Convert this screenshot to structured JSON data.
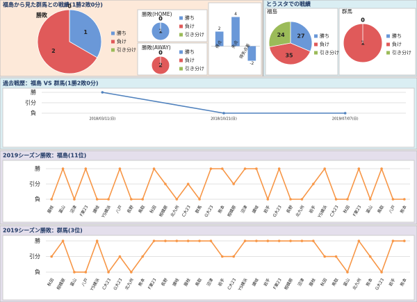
{
  "stadium_header": "とうスタでの戦績",
  "chart_data": [
    {
      "type": "pie",
      "title": "福島から見た群馬との戦績(1勝2敗0分)",
      "label": "勝敗",
      "categories": [
        "勝ち",
        "負け",
        "引き分け"
      ],
      "values": [
        1,
        2,
        0
      ],
      "colors": [
        "#6a98d8",
        "#e05a5a",
        "#9bbb59"
      ]
    },
    {
      "type": "pie",
      "title": "勝敗(HOME)",
      "categories": [
        "勝ち",
        "負け",
        "引き分け"
      ],
      "values": [
        1,
        0,
        0
      ],
      "colors": [
        "#6a98d8",
        "#e05a5a",
        "#9bbb59"
      ]
    },
    {
      "type": "pie",
      "title": "勝敗(AWAY)",
      "categories": [
        "勝ち",
        "負け",
        "引き分け"
      ],
      "values": [
        0,
        2,
        0
      ],
      "colors": [
        "#6a98d8",
        "#e05a5a",
        "#9bbb59"
      ]
    },
    {
      "type": "bar",
      "categories": [
        "得点",
        "失点",
        "得失点差"
      ],
      "values": [
        2,
        4,
        -2
      ],
      "color": "#6a98d8",
      "ylim": [
        -3,
        5
      ]
    },
    {
      "type": "pie",
      "title": "福島",
      "categories": [
        "勝ち",
        "負け",
        "引き分け"
      ],
      "values": [
        27,
        35,
        24
      ],
      "colors": [
        "#6a98d8",
        "#e05a5a",
        "#9bbb59"
      ]
    },
    {
      "type": "pie",
      "title": "群馬",
      "categories": [
        "勝ち",
        "負け",
        "引き分け"
      ],
      "values": [
        0,
        1,
        0
      ],
      "colors": [
        "#6a98d8",
        "#e05a5a",
        "#9bbb59"
      ]
    },
    {
      "type": "line",
      "title": "過去戦歴：福島 VS 群馬(1勝2敗0分)",
      "categories": [
        "2018/03/11(日)",
        "2018/10/21(日)",
        "2019/07/07(日)"
      ],
      "values": [
        2,
        0,
        0
      ],
      "color": "#4f81bd",
      "ylim": [
        -0.25,
        2.25
      ],
      "yticks": [
        {
          "value": 2,
          "label": "勝"
        },
        {
          "value": 1,
          "label": "引分"
        },
        {
          "value": 0,
          "label": "負"
        }
      ],
      "grid": true
    },
    {
      "type": "line",
      "title": "2019シーズン勝敗：福島(11位)",
      "categories": [
        "藤枝",
        "富山",
        "沼津",
        "F東23",
        "讃岐",
        "YS横浜",
        "八戸",
        "長野",
        "鳥取",
        "秋田",
        "相模原",
        "北九州",
        "C大23",
        "群馬",
        "G大23",
        "熊本",
        "相模原",
        "沼津",
        "讃岐",
        "岩手",
        "G大23",
        "長野",
        "北九州",
        "岩手",
        "YS横浜",
        "C大23",
        "秋田",
        "F東23",
        "富山",
        "鳥取",
        "八戸",
        "熊本"
      ],
      "values": [
        0,
        2,
        0,
        2,
        0,
        0,
        2,
        0,
        0,
        2,
        1,
        0,
        1,
        0,
        2,
        2,
        1,
        2,
        2,
        0,
        2,
        0,
        0,
        1,
        2,
        0,
        0,
        2,
        0,
        2,
        0,
        0
      ],
      "color": "#f79646",
      "ylim": [
        -0.25,
        2.25
      ],
      "yticks": [
        {
          "value": 2,
          "label": "勝"
        },
        {
          "value": 1,
          "label": "引分"
        },
        {
          "value": 0,
          "label": "負"
        }
      ],
      "grid": true
    },
    {
      "type": "line",
      "title": "2019シーズン勝敗：群馬(3位)",
      "categories": [
        "秋田",
        "相模原",
        "富山",
        "八戸",
        "YS横浜",
        "C大23",
        "G大23",
        "北九州",
        "熊本",
        "F東23",
        "長野",
        "讃岐",
        "藤枝",
        "鳥取",
        "沼津",
        "岩手",
        "C大23",
        "YS横浜",
        "讃岐",
        "岩手",
        "F東23",
        "相模原",
        "沼津",
        "藤枝",
        "秋田",
        "鳥取",
        "富山",
        "北九州",
        "熊本",
        "G大23",
        "岩手",
        "熊本"
      ],
      "values": [
        1,
        2,
        0,
        0,
        2,
        0,
        1,
        0,
        1,
        2,
        2,
        2,
        2,
        2,
        2,
        1,
        1,
        2,
        2,
        2,
        2,
        2,
        2,
        2,
        1,
        1,
        0,
        2,
        1,
        0,
        2,
        2
      ],
      "color": "#f79646",
      "ylim": [
        -0.25,
        2.25
      ],
      "yticks": [
        {
          "value": 2,
          "label": "勝"
        },
        {
          "value": 1,
          "label": "引分"
        },
        {
          "value": 0,
          "label": "負"
        }
      ],
      "grid": true
    }
  ]
}
